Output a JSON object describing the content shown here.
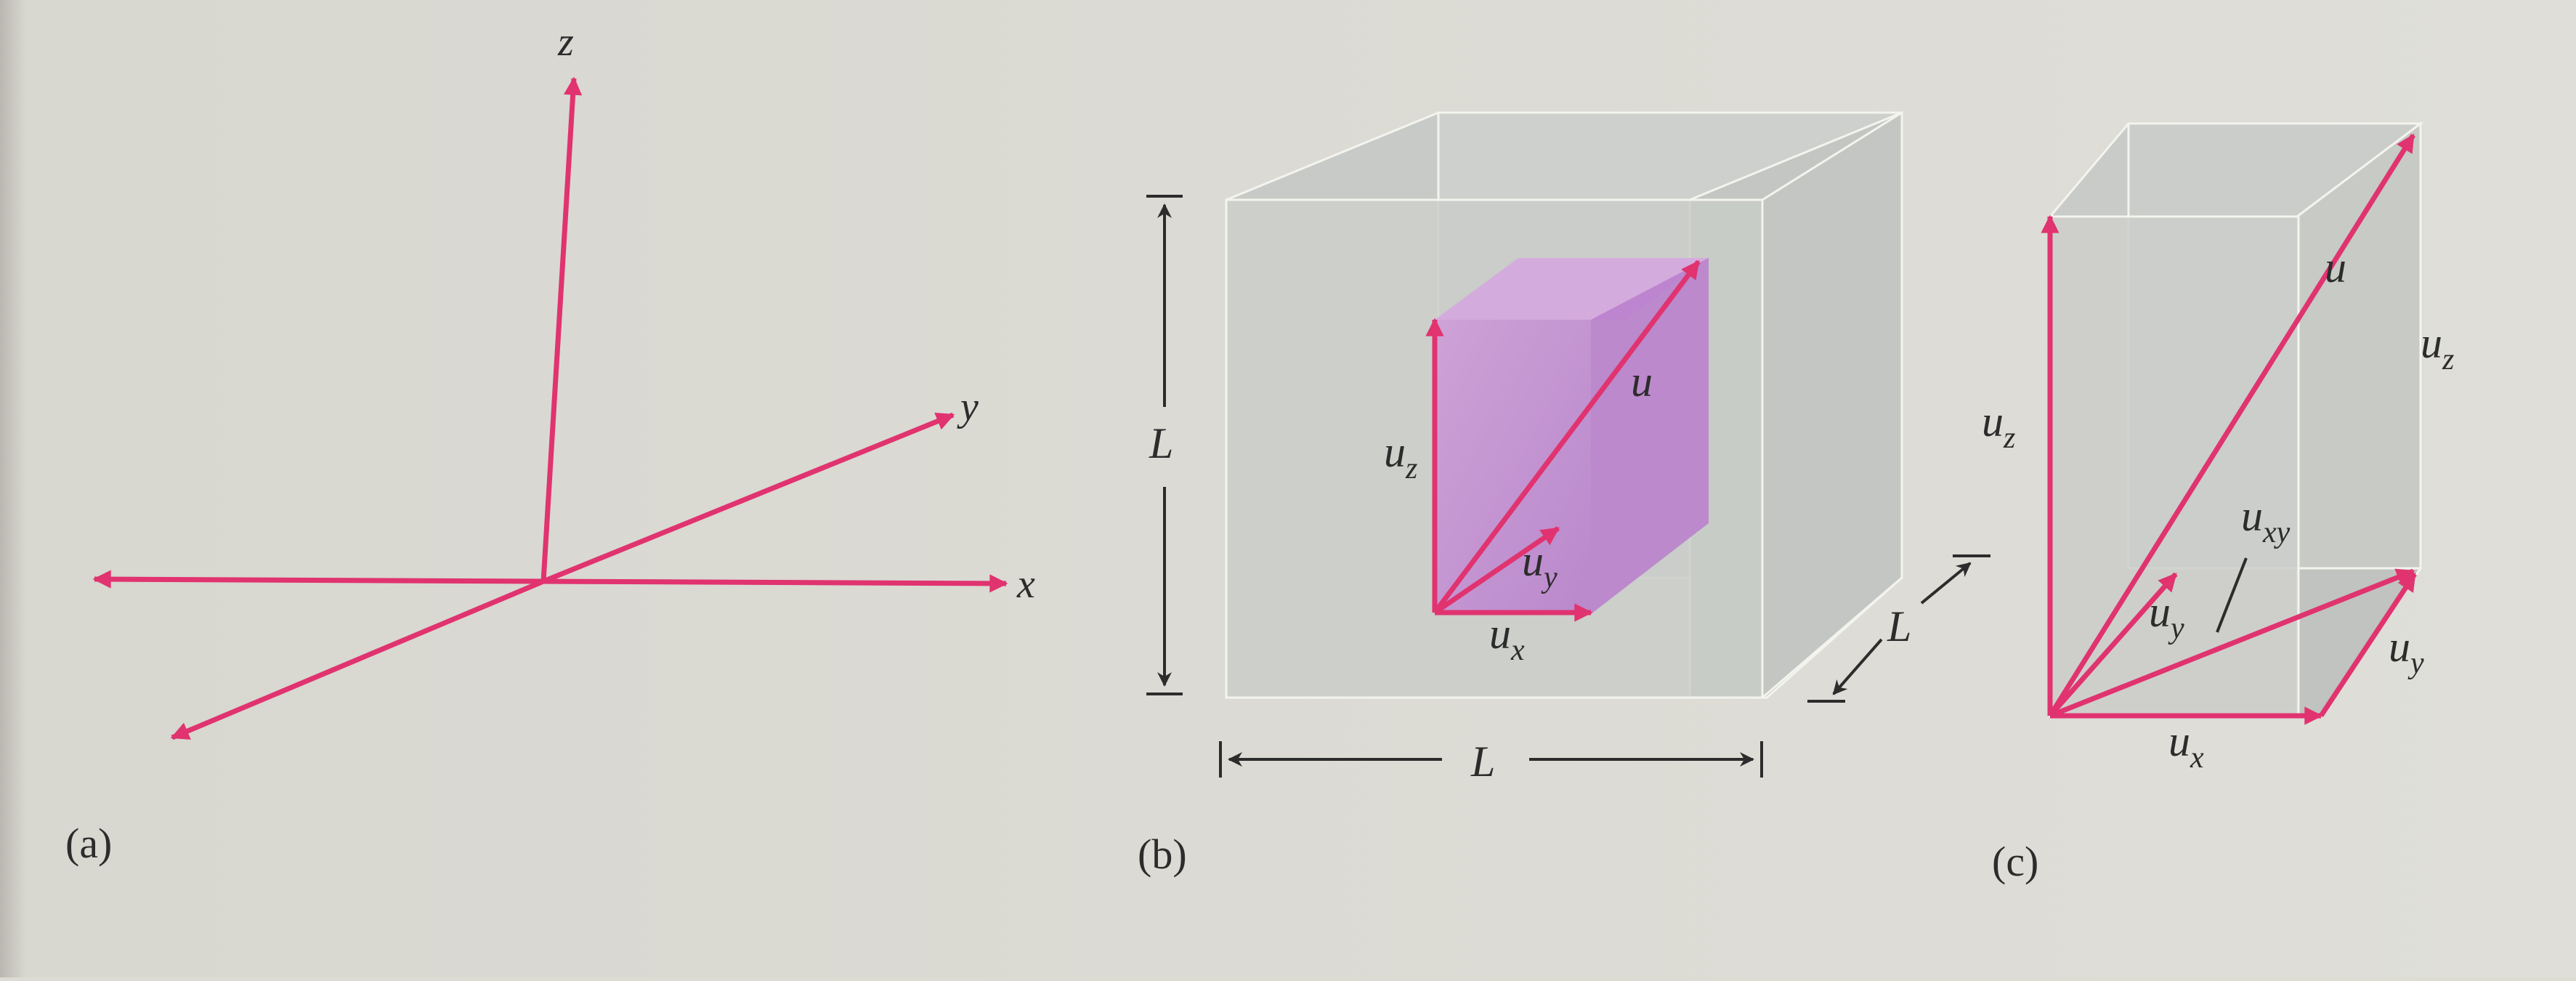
{
  "colors": {
    "page": "#dcdbd4",
    "vector": "#e0336f",
    "edge": "#f4f4ef",
    "box_face": "#c9ccc8",
    "inner_box": "#c98fd6",
    "text": "#2c2c2c"
  },
  "panel_a": {
    "caption": "(a)",
    "axis_x": "x",
    "axis_y": "y",
    "axis_z": "z"
  },
  "panel_b": {
    "caption": "(b)",
    "dim_height": "L",
    "dim_width": "L",
    "dim_depth": "L",
    "vec_u": "u",
    "vec_ux": "u",
    "vec_ux_sub": "x",
    "vec_uy": "u",
    "vec_uy_sub": "y",
    "vec_uz": "u",
    "vec_uz_sub": "z"
  },
  "panel_c": {
    "caption": "(c)",
    "vec_u": "u",
    "vec_ux": "u",
    "vec_ux_sub": "x",
    "vec_uy_inner": "u",
    "vec_uy_inner_sub": "y",
    "vec_uy_side": "u",
    "vec_uy_side_sub": "y",
    "vec_uz_left": "u",
    "vec_uz_left_sub": "z",
    "vec_uz_right": "u",
    "vec_uz_right_sub": "z",
    "vec_uxy": "u",
    "vec_uxy_sub": "xy"
  }
}
